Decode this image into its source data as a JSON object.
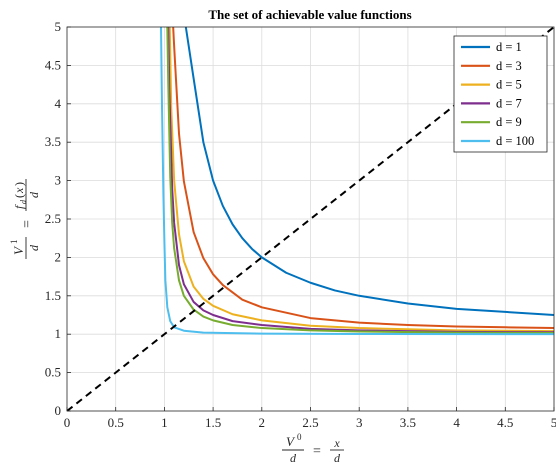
{
  "chart_data": {
    "type": "line",
    "title": "The set of achievable value functions",
    "xlabel": "V^0/d = x/d",
    "ylabel": "V^1/d = f_d(x)/d",
    "xlim": [
      0,
      5
    ],
    "ylim": [
      0,
      5
    ],
    "x_ticks": [
      "0",
      "0.5",
      "1",
      "1.5",
      "2",
      "2.5",
      "3",
      "3.5",
      "4",
      "4.5",
      "5"
    ],
    "y_ticks": [
      "0",
      "0.5",
      "1",
      "1.5",
      "2",
      "2.5",
      "3",
      "3.5",
      "4",
      "4.5",
      "5"
    ],
    "grid": true,
    "legend_position": "top-right",
    "series": [
      {
        "name": "d = 1",
        "color": "#0072BD",
        "points": [
          [
            1.22,
            5.0
          ],
          [
            1.3,
            4.33
          ],
          [
            1.4,
            3.5
          ],
          [
            1.5,
            3.0
          ],
          [
            1.6,
            2.67
          ],
          [
            1.7,
            2.43
          ],
          [
            1.8,
            2.25
          ],
          [
            1.9,
            2.11
          ],
          [
            2.0,
            2.0
          ],
          [
            2.25,
            1.8
          ],
          [
            2.5,
            1.67
          ],
          [
            2.75,
            1.57
          ],
          [
            3.0,
            1.5
          ],
          [
            3.5,
            1.4
          ],
          [
            4.0,
            1.33
          ],
          [
            4.5,
            1.29
          ],
          [
            5.0,
            1.25
          ]
        ]
      },
      {
        "name": "d = 3",
        "color": "#D95319",
        "points": [
          [
            1.09,
            5.0
          ],
          [
            1.1,
            4.75
          ],
          [
            1.15,
            3.61
          ],
          [
            1.2,
            2.99
          ],
          [
            1.3,
            2.33
          ],
          [
            1.4,
            1.99
          ],
          [
            1.5,
            1.78
          ],
          [
            1.6,
            1.64
          ],
          [
            1.8,
            1.45
          ],
          [
            2.0,
            1.35
          ],
          [
            2.5,
            1.21
          ],
          [
            3.0,
            1.15
          ],
          [
            3.5,
            1.12
          ],
          [
            4.0,
            1.1
          ],
          [
            4.5,
            1.09
          ],
          [
            5.0,
            1.08
          ]
        ]
      },
      {
        "name": "d = 5",
        "color": "#EDB120",
        "points": [
          [
            1.055,
            5.0
          ],
          [
            1.07,
            3.95
          ],
          [
            1.1,
            3.0
          ],
          [
            1.15,
            2.3
          ],
          [
            1.2,
            1.95
          ],
          [
            1.3,
            1.62
          ],
          [
            1.4,
            1.46
          ],
          [
            1.5,
            1.37
          ],
          [
            1.7,
            1.26
          ],
          [
            2.0,
            1.18
          ],
          [
            2.5,
            1.11
          ],
          [
            3.0,
            1.08
          ],
          [
            4.0,
            1.05
          ],
          [
            5.0,
            1.04
          ]
        ]
      },
      {
        "name": "d = 7",
        "color": "#7E2F8E",
        "points": [
          [
            1.04,
            5.0
          ],
          [
            1.05,
            4.2
          ],
          [
            1.08,
            2.9
          ],
          [
            1.1,
            2.45
          ],
          [
            1.15,
            1.9
          ],
          [
            1.2,
            1.65
          ],
          [
            1.3,
            1.42
          ],
          [
            1.4,
            1.31
          ],
          [
            1.5,
            1.25
          ],
          [
            1.7,
            1.17
          ],
          [
            2.0,
            1.12
          ],
          [
            2.5,
            1.07
          ],
          [
            3.0,
            1.05
          ],
          [
            4.0,
            1.03
          ],
          [
            5.0,
            1.025
          ]
        ]
      },
      {
        "name": "d = 9",
        "color": "#77AC30",
        "points": [
          [
            1.03,
            5.0
          ],
          [
            1.04,
            4.25
          ],
          [
            1.06,
            3.05
          ],
          [
            1.08,
            2.45
          ],
          [
            1.1,
            2.12
          ],
          [
            1.15,
            1.7
          ],
          [
            1.2,
            1.5
          ],
          [
            1.3,
            1.32
          ],
          [
            1.4,
            1.23
          ],
          [
            1.5,
            1.18
          ],
          [
            1.7,
            1.12
          ],
          [
            2.0,
            1.08
          ],
          [
            2.5,
            1.05
          ],
          [
            3.0,
            1.035
          ],
          [
            4.0,
            1.02
          ],
          [
            5.0,
            1.015
          ]
        ]
      },
      {
        "name": "d = 100",
        "color": "#4DBEEE",
        "points": [
          [
            0.965,
            5.0
          ],
          [
            0.975,
            4.0
          ],
          [
            0.99,
            2.8
          ],
          [
            1.0,
            2.2
          ],
          [
            1.01,
            1.7
          ],
          [
            1.03,
            1.35
          ],
          [
            1.06,
            1.17
          ],
          [
            1.1,
            1.09
          ],
          [
            1.2,
            1.045
          ],
          [
            1.4,
            1.02
          ],
          [
            2.0,
            1.008
          ],
          [
            3.0,
            1.003
          ],
          [
            5.0,
            1.001
          ]
        ]
      }
    ],
    "reference_line": {
      "style": "dashed",
      "color": "#000000",
      "points": [
        [
          0,
          0
        ],
        [
          5,
          5
        ]
      ]
    }
  }
}
